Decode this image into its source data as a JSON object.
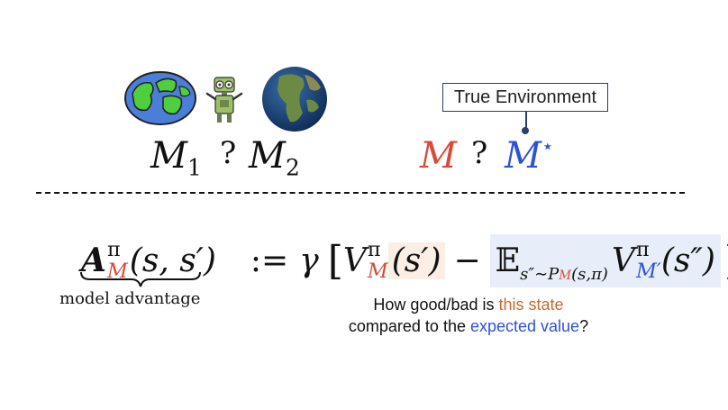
{
  "top_left": {
    "m1": "M",
    "m1_sub": "1",
    "question": "?",
    "m2": "M",
    "m2_sub": "2"
  },
  "top_right": {
    "env_box": "True Environment",
    "m": "M",
    "question": "?",
    "m_star": "M",
    "star": "⋆"
  },
  "formula": {
    "A": "A",
    "A_sup": "π",
    "A_sub": "M",
    "A_args": "(s, s′)",
    "underbrace_label": "model advantage",
    "assign": ":=",
    "gamma": "γ",
    "lbracket": "[",
    "V": "V",
    "V_sup": "π",
    "V_sub": "M",
    "V_args": "(s′)",
    "minus": "−",
    "E": "𝔼",
    "E_sub_prefix": "s″∼P",
    "E_sub_M": "M",
    "E_sub_suffix": "(s,π)",
    "V2": "V",
    "V2_sup": "π",
    "V2_sub": "M′",
    "V2_args": "(s″)",
    "rbracket": "]"
  },
  "caption": {
    "line1_a": "How good/bad is ",
    "line1_highlight": "this state",
    "line2_a": "compared to the ",
    "line2_highlight": "expected value",
    "line2_b": "?"
  },
  "colors": {
    "red": "#d94a38",
    "blue": "#2e52d6",
    "orange": "#c66a2e",
    "orange_highlight_bg": "#fbeee4",
    "blue_highlight_bg": "#e8eef9"
  }
}
